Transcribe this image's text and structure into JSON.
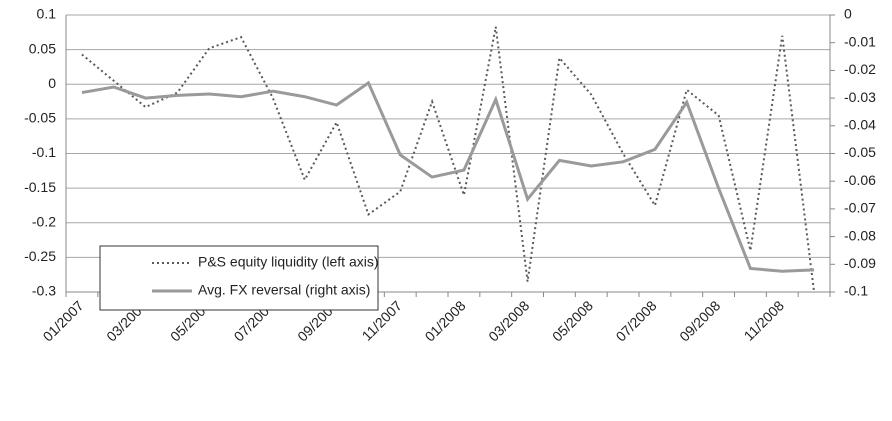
{
  "chart_data": {
    "type": "line",
    "categories": [
      "01/2007",
      null,
      "03/2007",
      null,
      "05/2007",
      null,
      "07/2007",
      null,
      "09/2007",
      null,
      "11/2007",
      null,
      "01/2008",
      null,
      "03/2008",
      null,
      "05/2008",
      null,
      "07/2008",
      null,
      "09/2008",
      null,
      "11/2008",
      null
    ],
    "series": [
      {
        "name": "P&S equity liquidity (left axis)",
        "color": "#595959",
        "dash": "dotted",
        "values": [
          0.043,
          0.005,
          -0.033,
          -0.012,
          0.052,
          0.068,
          -0.02,
          -0.138,
          -0.055,
          -0.188,
          -0.155,
          -0.025,
          -0.16,
          0.083,
          -0.285,
          0.038,
          -0.015,
          -0.1,
          -0.175,
          -0.008,
          -0.045,
          -0.24,
          0.07,
          -0.3
        ]
      },
      {
        "name": "Avg. FX reversal (right axis)",
        "color": "#9a9a9a",
        "dash": "solid",
        "axis": "y2",
        "values": [
          -0.028,
          -0.026,
          -0.03,
          -0.029,
          -0.0285,
          -0.0295,
          -0.0275,
          -0.0295,
          -0.0325,
          -0.0245,
          -0.0505,
          -0.0585,
          -0.056,
          -0.0305,
          -0.0665,
          -0.0525,
          -0.0545,
          -0.053,
          -0.0485,
          -0.0315,
          -0.0625,
          -0.0915,
          -0.0925,
          -0.092
        ]
      }
    ],
    "ylim": [
      -0.3,
      0.1
    ],
    "yticks": [
      0.1,
      0.05,
      0,
      -0.05,
      -0.1,
      -0.15,
      -0.2,
      -0.25,
      -0.3
    ],
    "y2lim": [
      -0.1,
      0
    ],
    "y2ticks": [
      0,
      -0.01,
      -0.02,
      -0.03,
      -0.04,
      -0.05,
      -0.06,
      -0.07,
      -0.08,
      -0.09,
      -0.1
    ],
    "grid": true,
    "legend": "lower left"
  }
}
